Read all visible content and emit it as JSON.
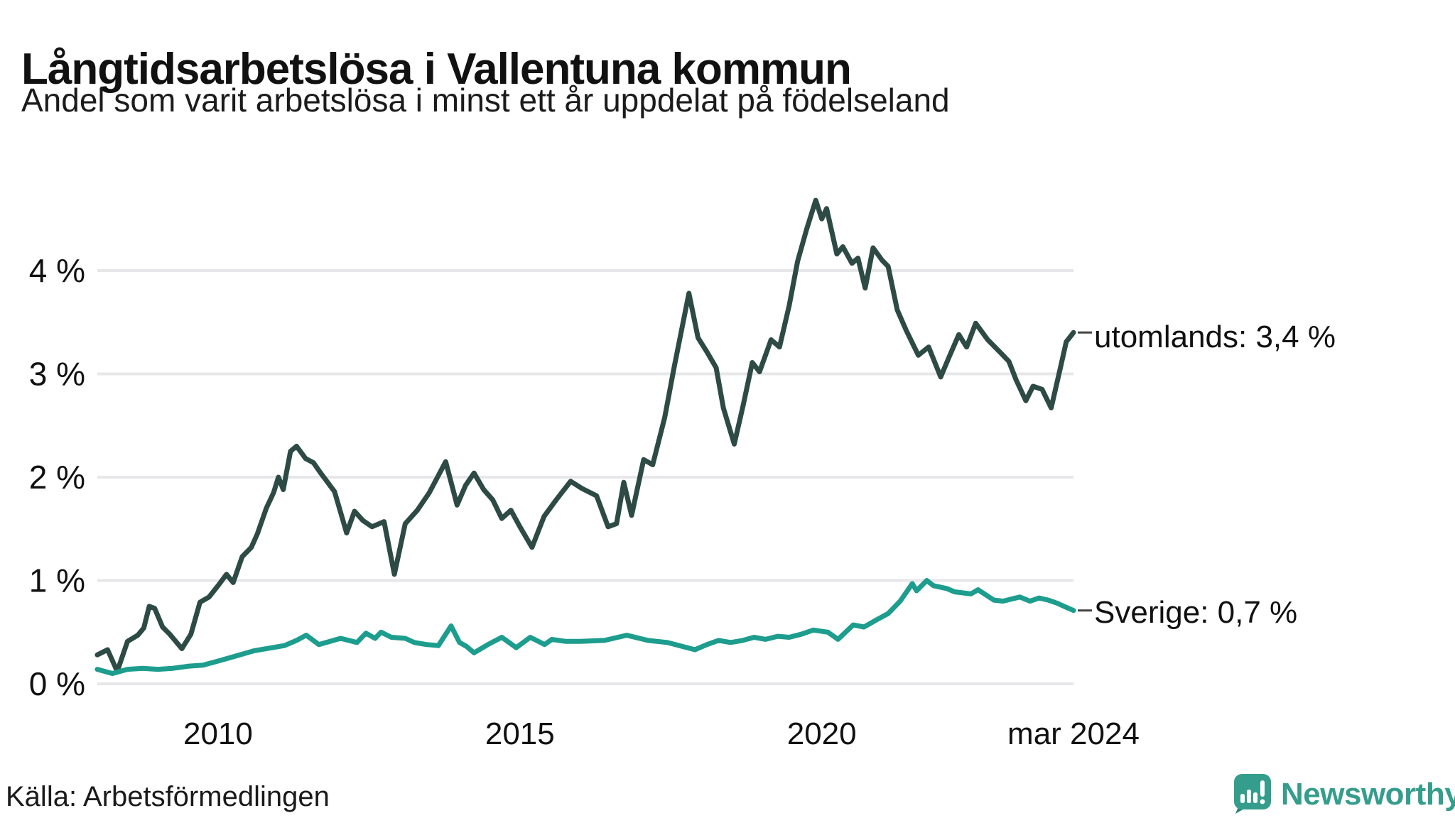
{
  "title": "Långtidsarbetslösa i Vallentuna kommun",
  "subtitle": "Andel som varit arbetslösa i minst ett år uppdelat på födelseland",
  "source": "Källa: Arbetsförmedlingen",
  "branding": {
    "name": "Newsworthy"
  },
  "colors": {
    "utomlands": "#2d4b44",
    "sverige": "#1d9d8d",
    "grid": "#e7e7ea",
    "tick_text": "#111111",
    "label_dash": "#444444",
    "brand": "#359d8c",
    "brand_dark": "#2e8579"
  },
  "chart_data": {
    "type": "line",
    "title": "Långtidsarbetslösa i Vallentuna kommun",
    "subtitle": "Andel som varit arbetslösa i minst ett år uppdelat på födelseland",
    "x_unit": "decimal_year",
    "xlim": [
      2008.0,
      2024.17
    ],
    "ylim": [
      0,
      4.75
    ],
    "grid": "horizontal",
    "legend_position": "end-of-line-labels",
    "y_ticks": [
      {
        "value": 0,
        "label": "0 %"
      },
      {
        "value": 1,
        "label": "1 %"
      },
      {
        "value": 2,
        "label": "2 %"
      },
      {
        "value": 3,
        "label": "3 %"
      },
      {
        "value": 4,
        "label": "4 %"
      }
    ],
    "x_ticks": [
      {
        "value": 2010.0,
        "label": "2010"
      },
      {
        "value": 2015.0,
        "label": "2015"
      },
      {
        "value": 2020.0,
        "label": "2020"
      },
      {
        "value": 2024.17,
        "label": "mar 2024"
      }
    ],
    "series": [
      {
        "name": "utomlands",
        "label": "utomlands: 3,4 %",
        "end_value_label": "3,4 %",
        "color": "#2d4b44",
        "points": [
          [
            2008.0,
            0.28
          ],
          [
            2008.17,
            0.33
          ],
          [
            2008.33,
            0.12
          ],
          [
            2008.5,
            0.41
          ],
          [
            2008.67,
            0.47
          ],
          [
            2008.77,
            0.54
          ],
          [
            2008.86,
            0.75
          ],
          [
            2008.95,
            0.73
          ],
          [
            2009.08,
            0.55
          ],
          [
            2009.2,
            0.48
          ],
          [
            2009.4,
            0.34
          ],
          [
            2009.55,
            0.48
          ],
          [
            2009.7,
            0.79
          ],
          [
            2009.85,
            0.84
          ],
          [
            2010.0,
            0.95
          ],
          [
            2010.14,
            1.06
          ],
          [
            2010.25,
            0.98
          ],
          [
            2010.4,
            1.23
          ],
          [
            2010.55,
            1.32
          ],
          [
            2010.65,
            1.45
          ],
          [
            2010.8,
            1.7
          ],
          [
            2010.92,
            1.85
          ],
          [
            2011.0,
            2.0
          ],
          [
            2011.08,
            1.88
          ],
          [
            2011.2,
            2.25
          ],
          [
            2011.3,
            2.3
          ],
          [
            2011.45,
            2.18
          ],
          [
            2011.58,
            2.14
          ],
          [
            2011.7,
            2.04
          ],
          [
            2011.93,
            1.86
          ],
          [
            2012.13,
            1.46
          ],
          [
            2012.26,
            1.67
          ],
          [
            2012.4,
            1.58
          ],
          [
            2012.55,
            1.52
          ],
          [
            2012.75,
            1.57
          ],
          [
            2012.92,
            1.06
          ],
          [
            2013.1,
            1.55
          ],
          [
            2013.3,
            1.68
          ],
          [
            2013.5,
            1.85
          ],
          [
            2013.77,
            2.15
          ],
          [
            2013.96,
            1.73
          ],
          [
            2014.1,
            1.92
          ],
          [
            2014.24,
            2.04
          ],
          [
            2014.4,
            1.88
          ],
          [
            2014.55,
            1.78
          ],
          [
            2014.7,
            1.6
          ],
          [
            2014.85,
            1.68
          ],
          [
            2015.0,
            1.52
          ],
          [
            2015.2,
            1.32
          ],
          [
            2015.4,
            1.62
          ],
          [
            2015.6,
            1.78
          ],
          [
            2015.84,
            1.96
          ],
          [
            2016.03,
            1.89
          ],
          [
            2016.27,
            1.82
          ],
          [
            2016.46,
            1.52
          ],
          [
            2016.6,
            1.55
          ],
          [
            2016.72,
            1.95
          ],
          [
            2016.85,
            1.63
          ],
          [
            2017.05,
            2.17
          ],
          [
            2017.2,
            2.12
          ],
          [
            2017.4,
            2.58
          ],
          [
            2017.55,
            3.05
          ],
          [
            2017.8,
            3.78
          ],
          [
            2017.95,
            3.35
          ],
          [
            2018.1,
            3.21
          ],
          [
            2018.25,
            3.06
          ],
          [
            2018.37,
            2.67
          ],
          [
            2018.55,
            2.32
          ],
          [
            2018.7,
            2.7
          ],
          [
            2018.85,
            3.11
          ],
          [
            2018.97,
            3.02
          ],
          [
            2019.16,
            3.33
          ],
          [
            2019.3,
            3.26
          ],
          [
            2019.46,
            3.66
          ],
          [
            2019.6,
            4.09
          ],
          [
            2019.75,
            4.4
          ],
          [
            2019.9,
            4.68
          ],
          [
            2020.0,
            4.5
          ],
          [
            2020.08,
            4.6
          ],
          [
            2020.25,
            4.16
          ],
          [
            2020.35,
            4.23
          ],
          [
            2020.5,
            4.07
          ],
          [
            2020.6,
            4.12
          ],
          [
            2020.72,
            3.83
          ],
          [
            2020.85,
            4.22
          ],
          [
            2021.0,
            4.1
          ],
          [
            2021.1,
            4.04
          ],
          [
            2021.25,
            3.62
          ],
          [
            2021.4,
            3.42
          ],
          [
            2021.6,
            3.18
          ],
          [
            2021.77,
            3.26
          ],
          [
            2021.97,
            2.97
          ],
          [
            2022.1,
            3.15
          ],
          [
            2022.27,
            3.38
          ],
          [
            2022.4,
            3.26
          ],
          [
            2022.55,
            3.49
          ],
          [
            2022.75,
            3.33
          ],
          [
            2022.97,
            3.2
          ],
          [
            2023.1,
            3.12
          ],
          [
            2023.22,
            2.94
          ],
          [
            2023.38,
            2.74
          ],
          [
            2023.5,
            2.88
          ],
          [
            2023.65,
            2.85
          ],
          [
            2023.8,
            2.67
          ],
          [
            2023.95,
            3.05
          ],
          [
            2024.05,
            3.31
          ],
          [
            2024.17,
            3.4
          ]
        ]
      },
      {
        "name": "Sverige",
        "label": "Sverige: 0,7 %",
        "end_value_label": "0,7 %",
        "color": "#1d9d8d",
        "points": [
          [
            2008.0,
            0.14
          ],
          [
            2008.25,
            0.1
          ],
          [
            2008.5,
            0.14
          ],
          [
            2008.75,
            0.15
          ],
          [
            2009.0,
            0.14
          ],
          [
            2009.25,
            0.15
          ],
          [
            2009.5,
            0.17
          ],
          [
            2009.75,
            0.18
          ],
          [
            2010.0,
            0.22
          ],
          [
            2010.3,
            0.27
          ],
          [
            2010.6,
            0.32
          ],
          [
            2010.9,
            0.35
          ],
          [
            2011.1,
            0.37
          ],
          [
            2011.3,
            0.42
          ],
          [
            2011.46,
            0.47
          ],
          [
            2011.67,
            0.38
          ],
          [
            2012.03,
            0.44
          ],
          [
            2012.3,
            0.4
          ],
          [
            2012.45,
            0.49
          ],
          [
            2012.6,
            0.44
          ],
          [
            2012.7,
            0.5
          ],
          [
            2012.87,
            0.45
          ],
          [
            2013.1,
            0.44
          ],
          [
            2013.25,
            0.4
          ],
          [
            2013.45,
            0.38
          ],
          [
            2013.65,
            0.37
          ],
          [
            2013.86,
            0.56
          ],
          [
            2014.0,
            0.4
          ],
          [
            2014.12,
            0.36
          ],
          [
            2014.24,
            0.3
          ],
          [
            2014.47,
            0.38
          ],
          [
            2014.7,
            0.45
          ],
          [
            2014.94,
            0.35
          ],
          [
            2015.17,
            0.45
          ],
          [
            2015.41,
            0.38
          ],
          [
            2015.53,
            0.43
          ],
          [
            2015.76,
            0.41
          ],
          [
            2016.0,
            0.41
          ],
          [
            2016.4,
            0.42
          ],
          [
            2016.77,
            0.47
          ],
          [
            2017.12,
            0.42
          ],
          [
            2017.44,
            0.4
          ],
          [
            2017.9,
            0.33
          ],
          [
            2018.1,
            0.38
          ],
          [
            2018.29,
            0.42
          ],
          [
            2018.49,
            0.4
          ],
          [
            2018.69,
            0.42
          ],
          [
            2018.88,
            0.45
          ],
          [
            2019.07,
            0.43
          ],
          [
            2019.27,
            0.46
          ],
          [
            2019.46,
            0.45
          ],
          [
            2019.66,
            0.48
          ],
          [
            2019.86,
            0.52
          ],
          [
            2020.1,
            0.5
          ],
          [
            2020.27,
            0.43
          ],
          [
            2020.52,
            0.57
          ],
          [
            2020.7,
            0.55
          ],
          [
            2020.91,
            0.62
          ],
          [
            2021.1,
            0.68
          ],
          [
            2021.3,
            0.8
          ],
          [
            2021.5,
            0.97
          ],
          [
            2021.57,
            0.9
          ],
          [
            2021.74,
            1.0
          ],
          [
            2021.85,
            0.95
          ],
          [
            2022.08,
            0.92
          ],
          [
            2022.2,
            0.89
          ],
          [
            2022.47,
            0.87
          ],
          [
            2022.59,
            0.91
          ],
          [
            2022.85,
            0.81
          ],
          [
            2023.0,
            0.8
          ],
          [
            2023.28,
            0.84
          ],
          [
            2023.45,
            0.8
          ],
          [
            2023.6,
            0.83
          ],
          [
            2023.75,
            0.81
          ],
          [
            2023.9,
            0.78
          ],
          [
            2024.05,
            0.74
          ],
          [
            2024.17,
            0.71
          ]
        ]
      }
    ]
  }
}
